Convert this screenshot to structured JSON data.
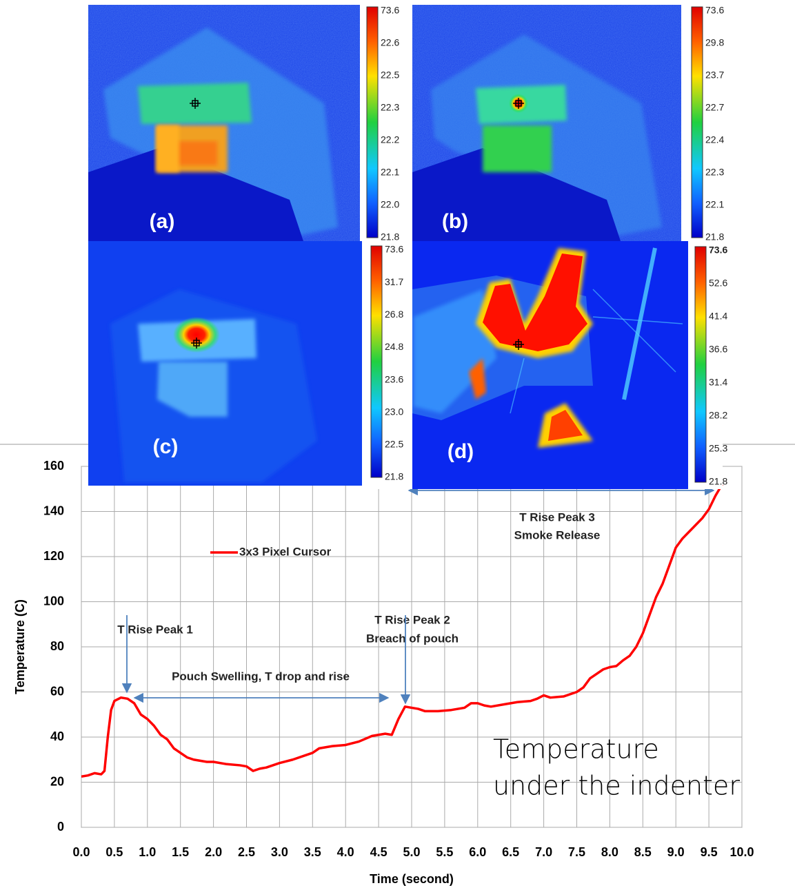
{
  "panels": [
    {
      "label": "(a)",
      "colorbar": [
        "73.6",
        "22.6",
        "22.5",
        "22.3",
        "22.2",
        "22.1",
        "22.0",
        "21.8"
      ]
    },
    {
      "label": "(b)",
      "colorbar": [
        "73.6",
        "29.8",
        "23.7",
        "22.7",
        "22.4",
        "22.3",
        "22.1",
        "21.8"
      ]
    },
    {
      "label": "(c)",
      "colorbar": [
        "73.6",
        "31.7",
        "26.8",
        "24.8",
        "23.6",
        "23.0",
        "22.5",
        "21.8"
      ]
    },
    {
      "label": "(d)",
      "colorbar": [
        "73.6",
        "52.6",
        "41.4",
        "36.6",
        "31.4",
        "28.2",
        "25.3",
        "21.8"
      ]
    }
  ],
  "caption": [
    "Temperature",
    "under the indenter"
  ],
  "chart_data": {
    "type": "line",
    "xlabel": "Time (second)",
    "ylabel": "Temperature (C)",
    "x": [
      0,
      0.1,
      0.2,
      0.3,
      0.35,
      0.4,
      0.45,
      0.5,
      0.6,
      0.7,
      0.8,
      0.9,
      1.0,
      1.1,
      1.2,
      1.3,
      1.4,
      1.5,
      1.6,
      1.7,
      1.8,
      1.9,
      2.0,
      2.2,
      2.4,
      2.5,
      2.6,
      2.7,
      2.8,
      3.0,
      3.2,
      3.4,
      3.5,
      3.6,
      3.8,
      4.0,
      4.2,
      4.4,
      4.6,
      4.7,
      4.8,
      4.9,
      5.0,
      5.1,
      5.2,
      5.4,
      5.6,
      5.8,
      5.9,
      6.0,
      6.1,
      6.2,
      6.4,
      6.6,
      6.8,
      6.9,
      7.0,
      7.1,
      7.3,
      7.5,
      7.6,
      7.7,
      7.8,
      7.9,
      8.0,
      8.1,
      8.2,
      8.3,
      8.4,
      8.5,
      8.6,
      8.7,
      8.8,
      8.9,
      9.0,
      9.1,
      9.2,
      9.3,
      9.4,
      9.5,
      9.6,
      9.7
    ],
    "series": [
      {
        "name": "3x3 Pixel Cursor",
        "color": "#ff0000",
        "values": [
          22.5,
          23,
          24,
          23.5,
          25,
          40,
          52,
          56,
          57.5,
          57,
          55,
          50,
          48,
          45,
          41,
          39,
          35,
          33,
          31,
          30,
          29.5,
          29,
          29,
          28,
          27.5,
          27,
          25,
          26,
          26.5,
          28.5,
          30,
          32,
          33,
          35,
          36,
          36.5,
          38,
          40.5,
          41.5,
          41,
          48,
          53.5,
          53,
          52.5,
          51.5,
          51.5,
          52,
          53,
          55,
          55,
          54,
          53.5,
          54.5,
          55.5,
          56,
          57,
          58.5,
          57.5,
          58,
          60,
          62,
          66,
          68,
          70,
          71,
          71.5,
          74,
          76,
          80,
          86,
          94,
          102,
          108,
          116,
          124,
          128,
          131,
          134,
          137,
          141,
          147,
          152
        ]
      }
    ],
    "xlim": [
      0,
      10
    ],
    "ylim": [
      0,
      160
    ],
    "xticks": [
      {
        "value": 0,
        "label": "0.0"
      },
      {
        "value": 0.5,
        "label": "0.5"
      },
      {
        "value": 1,
        "label": "1.0"
      },
      {
        "value": 1.5,
        "label": "1.5"
      },
      {
        "value": 2,
        "label": "2.0"
      },
      {
        "value": 2.5,
        "label": "2.5"
      },
      {
        "value": 3,
        "label": "3.0"
      },
      {
        "value": 3.5,
        "label": "3.5"
      },
      {
        "value": 4,
        "label": "4.0"
      },
      {
        "value": 4.5,
        "label": "4.5"
      },
      {
        "value": 5,
        "label": "5.0"
      },
      {
        "value": 5.5,
        "label": "5.5"
      },
      {
        "value": 6,
        "label": "6.0"
      },
      {
        "value": 6.5,
        "label": "6.5"
      },
      {
        "value": 7,
        "label": "7.0"
      },
      {
        "value": 7.5,
        "label": "7.5"
      },
      {
        "value": 8,
        "label": "8.0"
      },
      {
        "value": 8.5,
        "label": "8.5"
      },
      {
        "value": 9,
        "label": "9.0"
      },
      {
        "value": 9.5,
        "label": "9.5"
      },
      {
        "value": 10,
        "label": "10.0"
      }
    ],
    "yticks": [
      0,
      20,
      40,
      60,
      80,
      100,
      120,
      140,
      160
    ],
    "grid": true,
    "annotations": [
      "T Rise Peak 1",
      "Pouch Swelling, T drop and rise",
      "T Rise Peak 2",
      "Breach of pouch",
      "T Rise Peak 3",
      "Smoke Release"
    ]
  }
}
